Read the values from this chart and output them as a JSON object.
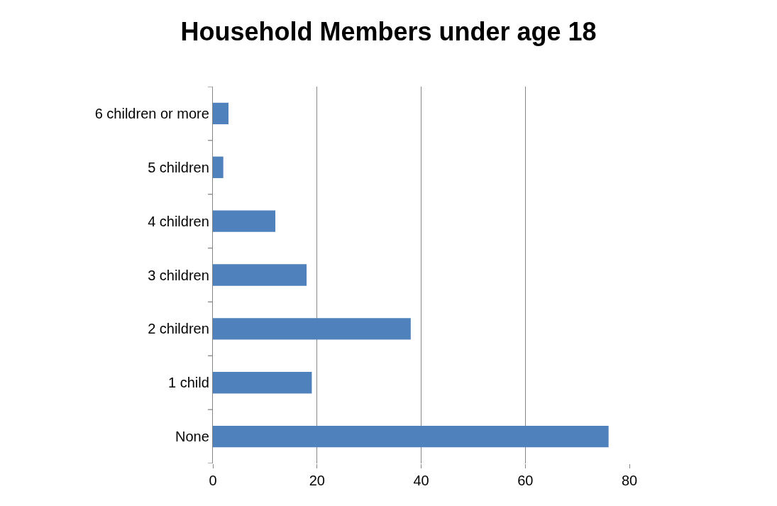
{
  "chart_data": {
    "type": "bar",
    "orientation": "horizontal",
    "title": "Household Members under age 18",
    "categories": [
      "6 children or more",
      "5 children",
      "4 children",
      "3 children",
      "2 children",
      "1 child",
      "None"
    ],
    "values": [
      3,
      2,
      12,
      18,
      38,
      19,
      76
    ],
    "color": "#4f81bd",
    "xlim": [
      0,
      80
    ],
    "xticks": [
      0,
      20,
      40,
      60,
      80
    ],
    "grid": "x",
    "legend": false
  }
}
